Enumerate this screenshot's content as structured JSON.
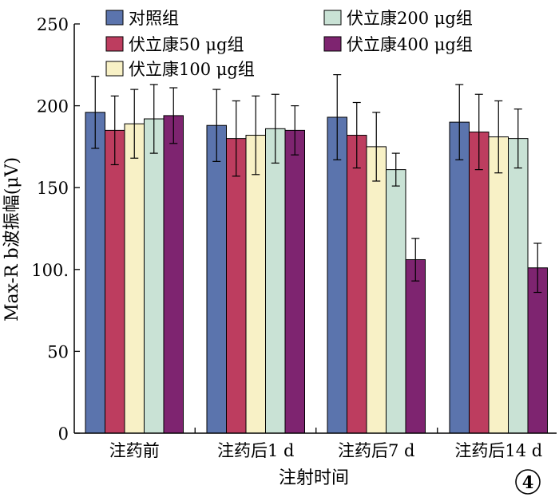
{
  "chart_data": {
    "type": "bar",
    "xlabel": "注射时间",
    "ylabel": "Max-R b波振幅(μV)",
    "ylim": [
      0,
      250
    ],
    "yticks": [
      "0",
      "50",
      "100.",
      "150",
      "200",
      "250"
    ],
    "ytick_values": [
      0,
      50,
      100,
      150,
      200,
      250
    ],
    "categories": [
      "注药前",
      "注药后1 d",
      "注药后7 d",
      "注药后14 d"
    ],
    "legend_position": "top",
    "grid": false,
    "series": [
      {
        "name": "对照组",
        "color": "#5b74ad",
        "values": [
          196,
          188,
          193,
          190
        ],
        "errors": [
          22,
          22,
          26,
          23
        ]
      },
      {
        "name": "伏立康50 μg组",
        "color": "#bd3d5f",
        "values": [
          185,
          180,
          182,
          184
        ],
        "errors": [
          21,
          23,
          20,
          23
        ]
      },
      {
        "name": "伏立康100 μg组",
        "color": "#f8f1c6",
        "values": [
          189,
          182,
          175,
          181
        ],
        "errors": [
          21,
          24,
          21,
          22
        ]
      },
      {
        "name": "伏立康200 μg组",
        "color": "#c9e2d5",
        "values": [
          192,
          186,
          161,
          180
        ],
        "errors": [
          21,
          21,
          10,
          18
        ]
      },
      {
        "name": "伏立康400 μg组",
        "color": "#7e2470",
        "values": [
          194,
          185,
          106,
          101
        ],
        "errors": [
          17,
          15,
          13,
          15
        ]
      }
    ]
  },
  "corner_badge": "4"
}
